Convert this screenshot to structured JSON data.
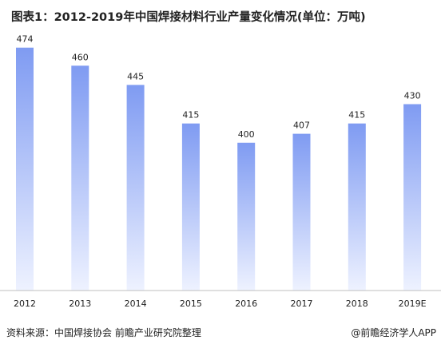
{
  "title": "图表1：2012-2019年中国焊接材料行业产量变化情况(单位：万吨)",
  "chart_data": {
    "type": "bar",
    "categories": [
      "2012",
      "2013",
      "2014",
      "2015",
      "2016",
      "2017",
      "2018",
      "2019E"
    ],
    "values": [
      474,
      460,
      445,
      415,
      400,
      407,
      415,
      430
    ],
    "data_labels": [
      "474",
      "460",
      "445",
      "415",
      "400",
      "407",
      "415",
      "430"
    ],
    "ylim": [
      285,
      485
    ],
    "grid": false,
    "gradient_top": "#7f9bf2",
    "gradient_bottom": "#eef2ff"
  },
  "footer": {
    "source": "资料来源：中国焊接协会 前瞻产业研究院整理",
    "brand": "@前瞻经济学人APP"
  },
  "colors": {
    "axis": "#bfbfbf",
    "text": "#222222"
  }
}
